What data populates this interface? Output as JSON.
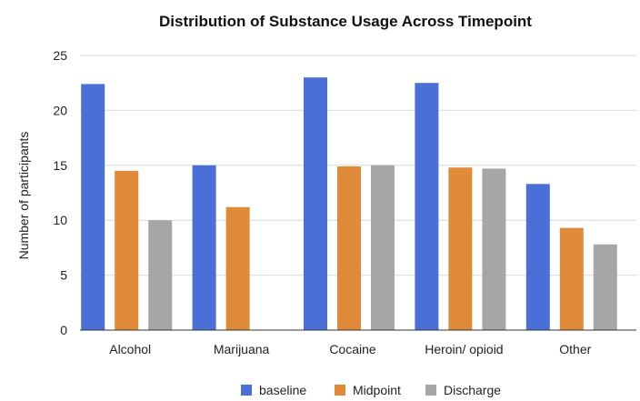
{
  "chart_data": {
    "type": "bar",
    "title": "Distribution of Substance Usage Across Timepoint",
    "xlabel": "",
    "ylabel": "Number of participants",
    "ylim": [
      0,
      25
    ],
    "yticks": [
      0,
      5,
      10,
      15,
      20,
      25
    ],
    "grid": true,
    "legend_position": "bottom",
    "categories": [
      "Alcohol",
      "Marijuana",
      "Cocaine",
      "Heroin/ opioid",
      "Other"
    ],
    "series": [
      {
        "name": "baseline",
        "color": "#4a6fd6",
        "values": [
          22.4,
          15.0,
          23.0,
          22.5,
          13.3
        ]
      },
      {
        "name": "Midpoint",
        "color": "#e08a3a",
        "values": [
          14.5,
          11.2,
          14.9,
          14.8,
          9.3
        ]
      },
      {
        "name": "Discharge",
        "color": "#a6a6a6",
        "values": [
          10.0,
          null,
          15.0,
          14.7,
          7.8
        ]
      }
    ]
  }
}
